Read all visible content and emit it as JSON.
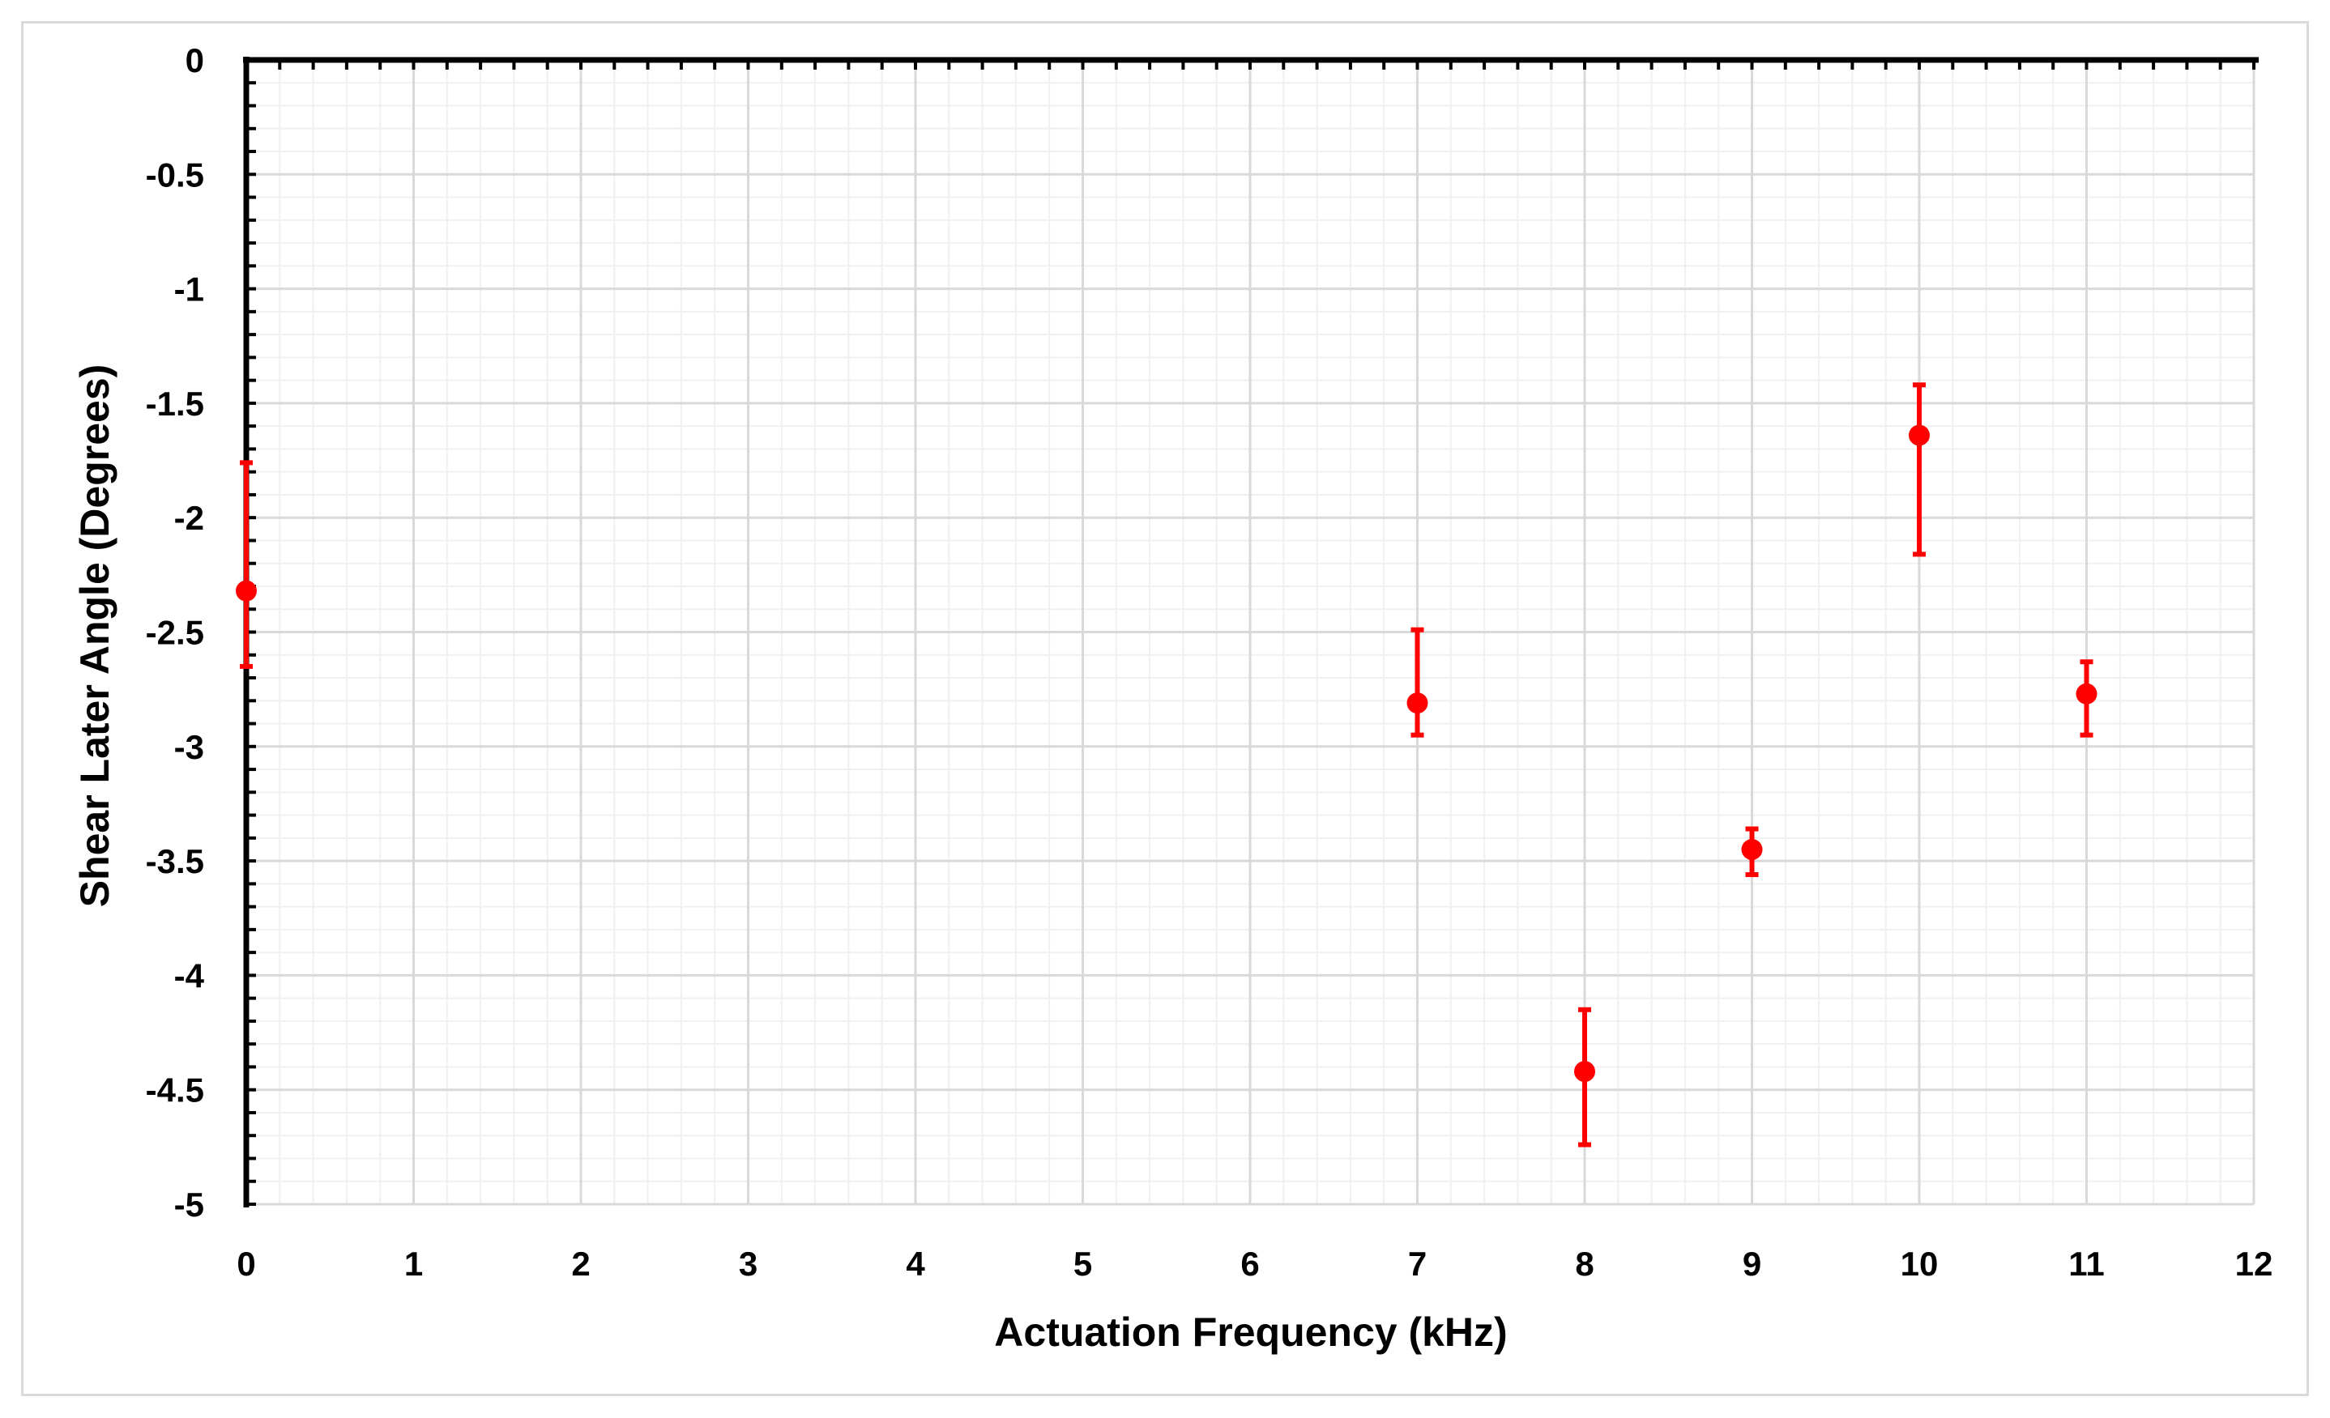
{
  "chart_data": {
    "type": "scatter",
    "title": "",
    "xlabel": "Actuation Frequency (kHz)",
    "ylabel": "Shear Later Angle (Degrees)",
    "xlim": [
      0,
      12
    ],
    "ylim": [
      -5,
      0
    ],
    "x_ticks": [
      0,
      1,
      2,
      3,
      4,
      5,
      6,
      7,
      8,
      9,
      10,
      11,
      12
    ],
    "y_ticks": [
      0,
      -0.5,
      -1,
      -1.5,
      -2,
      -2.5,
      -3,
      -3.5,
      -4,
      -4.5,
      -5
    ],
    "x_tick_labels": [
      "0",
      "1",
      "2",
      "3",
      "4",
      "5",
      "6",
      "7",
      "8",
      "9",
      "10",
      "11",
      "12"
    ],
    "y_tick_labels": [
      "0",
      "-0.5",
      "-1",
      "-1.5",
      "-2",
      "-2.5",
      "-3",
      "-3.5",
      "-4",
      "-4.5",
      "-5"
    ],
    "grid": true,
    "minor_grid": true,
    "marker_color": "#ff0000",
    "points": [
      {
        "x": 0,
        "y": -2.32,
        "err_low": -2.65,
        "err_high": -1.76
      },
      {
        "x": 7,
        "y": -2.81,
        "err_low": -2.95,
        "err_high": -2.49
      },
      {
        "x": 8,
        "y": -4.42,
        "err_low": -4.74,
        "err_high": -4.15
      },
      {
        "x": 9,
        "y": -3.45,
        "err_low": -3.56,
        "err_high": -3.36
      },
      {
        "x": 10,
        "y": -1.64,
        "err_low": -2.16,
        "err_high": -1.42
      },
      {
        "x": 11,
        "y": -2.77,
        "err_low": -2.95,
        "err_high": -2.63
      }
    ]
  }
}
